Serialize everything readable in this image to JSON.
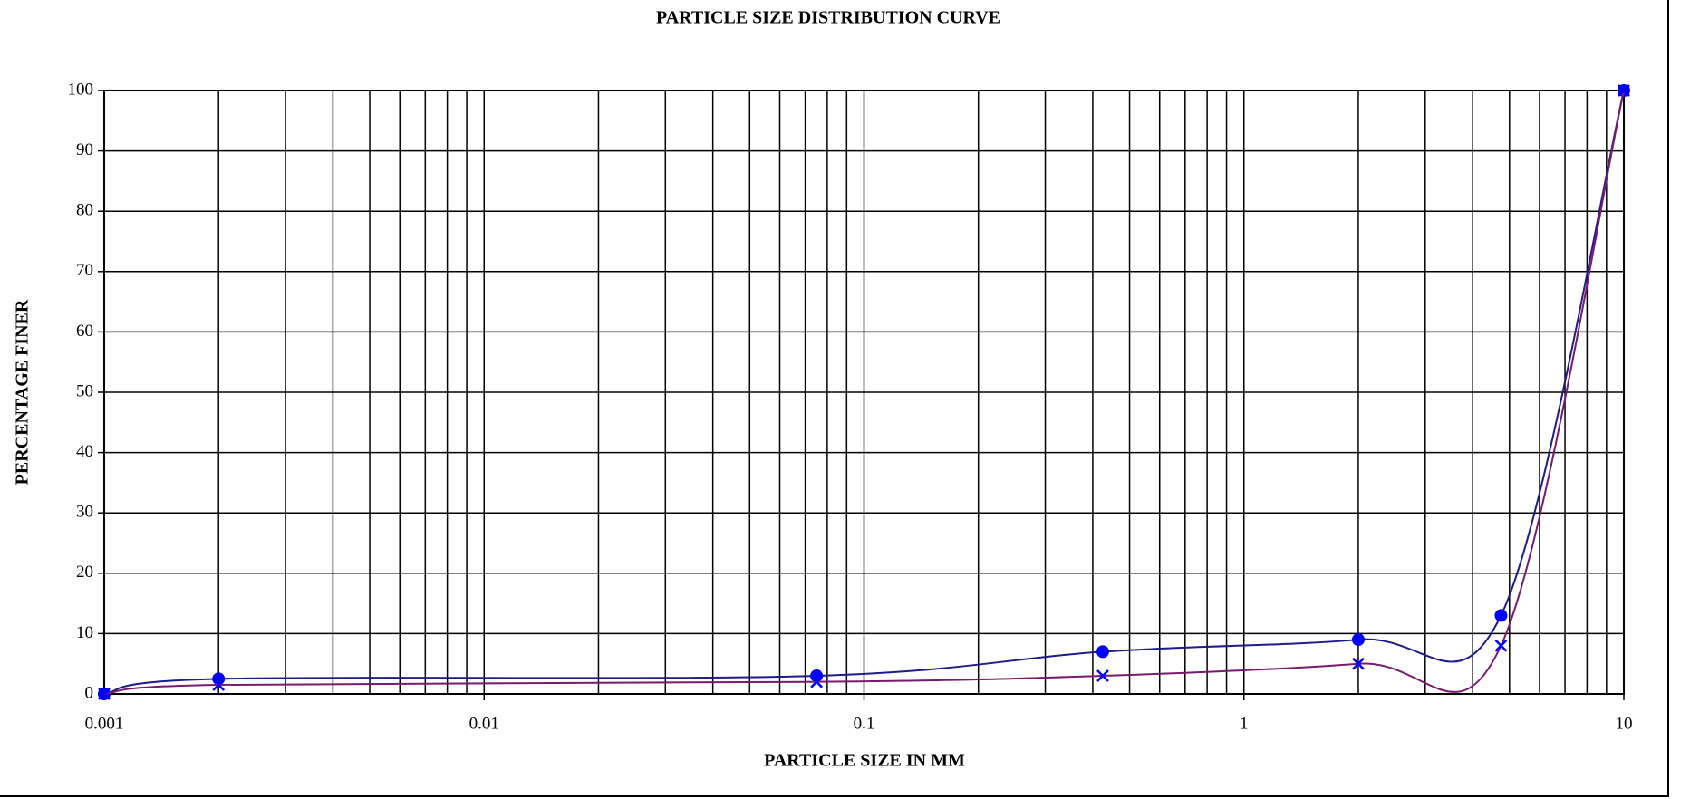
{
  "chart_data": {
    "type": "line",
    "title": "PARTICLE SIZE DISTRIBUTION CURVE",
    "x_label": "PARTICLE SIZE IN MM",
    "y_label": "PERCENTAGE FINER",
    "x": [
      0.001,
      0.002,
      0.075,
      0.425,
      2,
      4.75,
      10
    ],
    "series": [
      {
        "color": "#1c1c8a",
        "marker": "circle",
        "marker_color": "#0000ff",
        "values": [
          0,
          2.5,
          3,
          7,
          9,
          13,
          100
        ]
      },
      {
        "color": "#7a1a6e",
        "marker": "x",
        "marker_color": "#0000ff",
        "values": [
          0,
          1.5,
          2,
          3,
          5,
          8,
          100
        ]
      }
    ],
    "xscale": "log",
    "xlim": [
      0.001,
      10
    ],
    "xticks": [
      0.001,
      0.01,
      0.1,
      1,
      10
    ],
    "ylim": [
      0,
      100
    ],
    "yticks": [
      0,
      10,
      20,
      30,
      40,
      50,
      60,
      70,
      80,
      90,
      100
    ],
    "grid": true,
    "minor_grid": true
  }
}
